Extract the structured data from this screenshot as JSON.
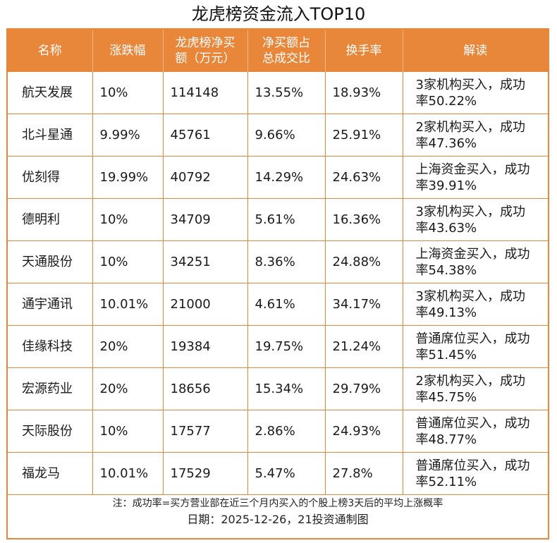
{
  "title": "龙虎榜资金流入TOP10",
  "headers": {
    "name": "名称",
    "change": "涨跌幅",
    "net_buy_l1": "龙虎榜净买",
    "net_buy_l2": "额（万元）",
    "ratio_l1": "净买额占",
    "ratio_l2": "总成交比",
    "turnover": "换手率",
    "interpret": "解读"
  },
  "rows": [
    {
      "name": "航天发展",
      "change": "10%",
      "net_buy": "114148",
      "ratio": "13.55%",
      "turnover": "18.93%",
      "interp_l1": "3家机构买入，成功",
      "interp_l2": "率50.22%"
    },
    {
      "name": "北斗星通",
      "change": "9.99%",
      "net_buy": "45761",
      "ratio": "9.66%",
      "turnover": "25.91%",
      "interp_l1": "2家机构买入，成功",
      "interp_l2": "率47.36%"
    },
    {
      "name": "优刻得",
      "change": "19.99%",
      "net_buy": "40792",
      "ratio": "14.29%",
      "turnover": "24.63%",
      "interp_l1": "上海资金买入，成功",
      "interp_l2": "率39.91%"
    },
    {
      "name": "德明利",
      "change": "10%",
      "net_buy": "34709",
      "ratio": "5.61%",
      "turnover": "16.36%",
      "interp_l1": "3家机构买入，成功",
      "interp_l2": "率43.63%"
    },
    {
      "name": "天通股份",
      "change": "10%",
      "net_buy": "34251",
      "ratio": "8.36%",
      "turnover": "24.88%",
      "interp_l1": "上海资金买入，成功",
      "interp_l2": "率54.38%"
    },
    {
      "name": "通宇通讯",
      "change": "10.01%",
      "net_buy": "21000",
      "ratio": "4.61%",
      "turnover": "34.17%",
      "interp_l1": "3家机构买入，成功",
      "interp_l2": "率49.13%"
    },
    {
      "name": "佳缘科技",
      "change": "20%",
      "net_buy": "19384",
      "ratio": "19.75%",
      "turnover": "21.24%",
      "interp_l1": "普通席位买入，成功",
      "interp_l2": "率51.45%"
    },
    {
      "name": "宏源药业",
      "change": "20%",
      "net_buy": "18656",
      "ratio": "15.34%",
      "turnover": "29.79%",
      "interp_l1": "2家机构买入，成功",
      "interp_l2": "率45.75%"
    },
    {
      "name": "天际股份",
      "change": "10%",
      "net_buy": "17577",
      "ratio": "2.86%",
      "turnover": "24.93%",
      "interp_l1": "普通席位买入，成功",
      "interp_l2": "率48.77%"
    },
    {
      "name": "福龙马",
      "change": "10.01%",
      "net_buy": "17529",
      "ratio": "5.47%",
      "turnover": "27.8%",
      "interp_l1": "普通席位买入，成功",
      "interp_l2": "率52.11%"
    }
  ],
  "note": "注：成功率=买方营业部在近三个月内买入的个股上榜3天后的平均上涨概率",
  "date_line": "日期：2025-12-26，21投资通制图",
  "colors": {
    "header_bg": "#e8863a",
    "border": "#e8863a",
    "header_text": "#ffffff"
  }
}
